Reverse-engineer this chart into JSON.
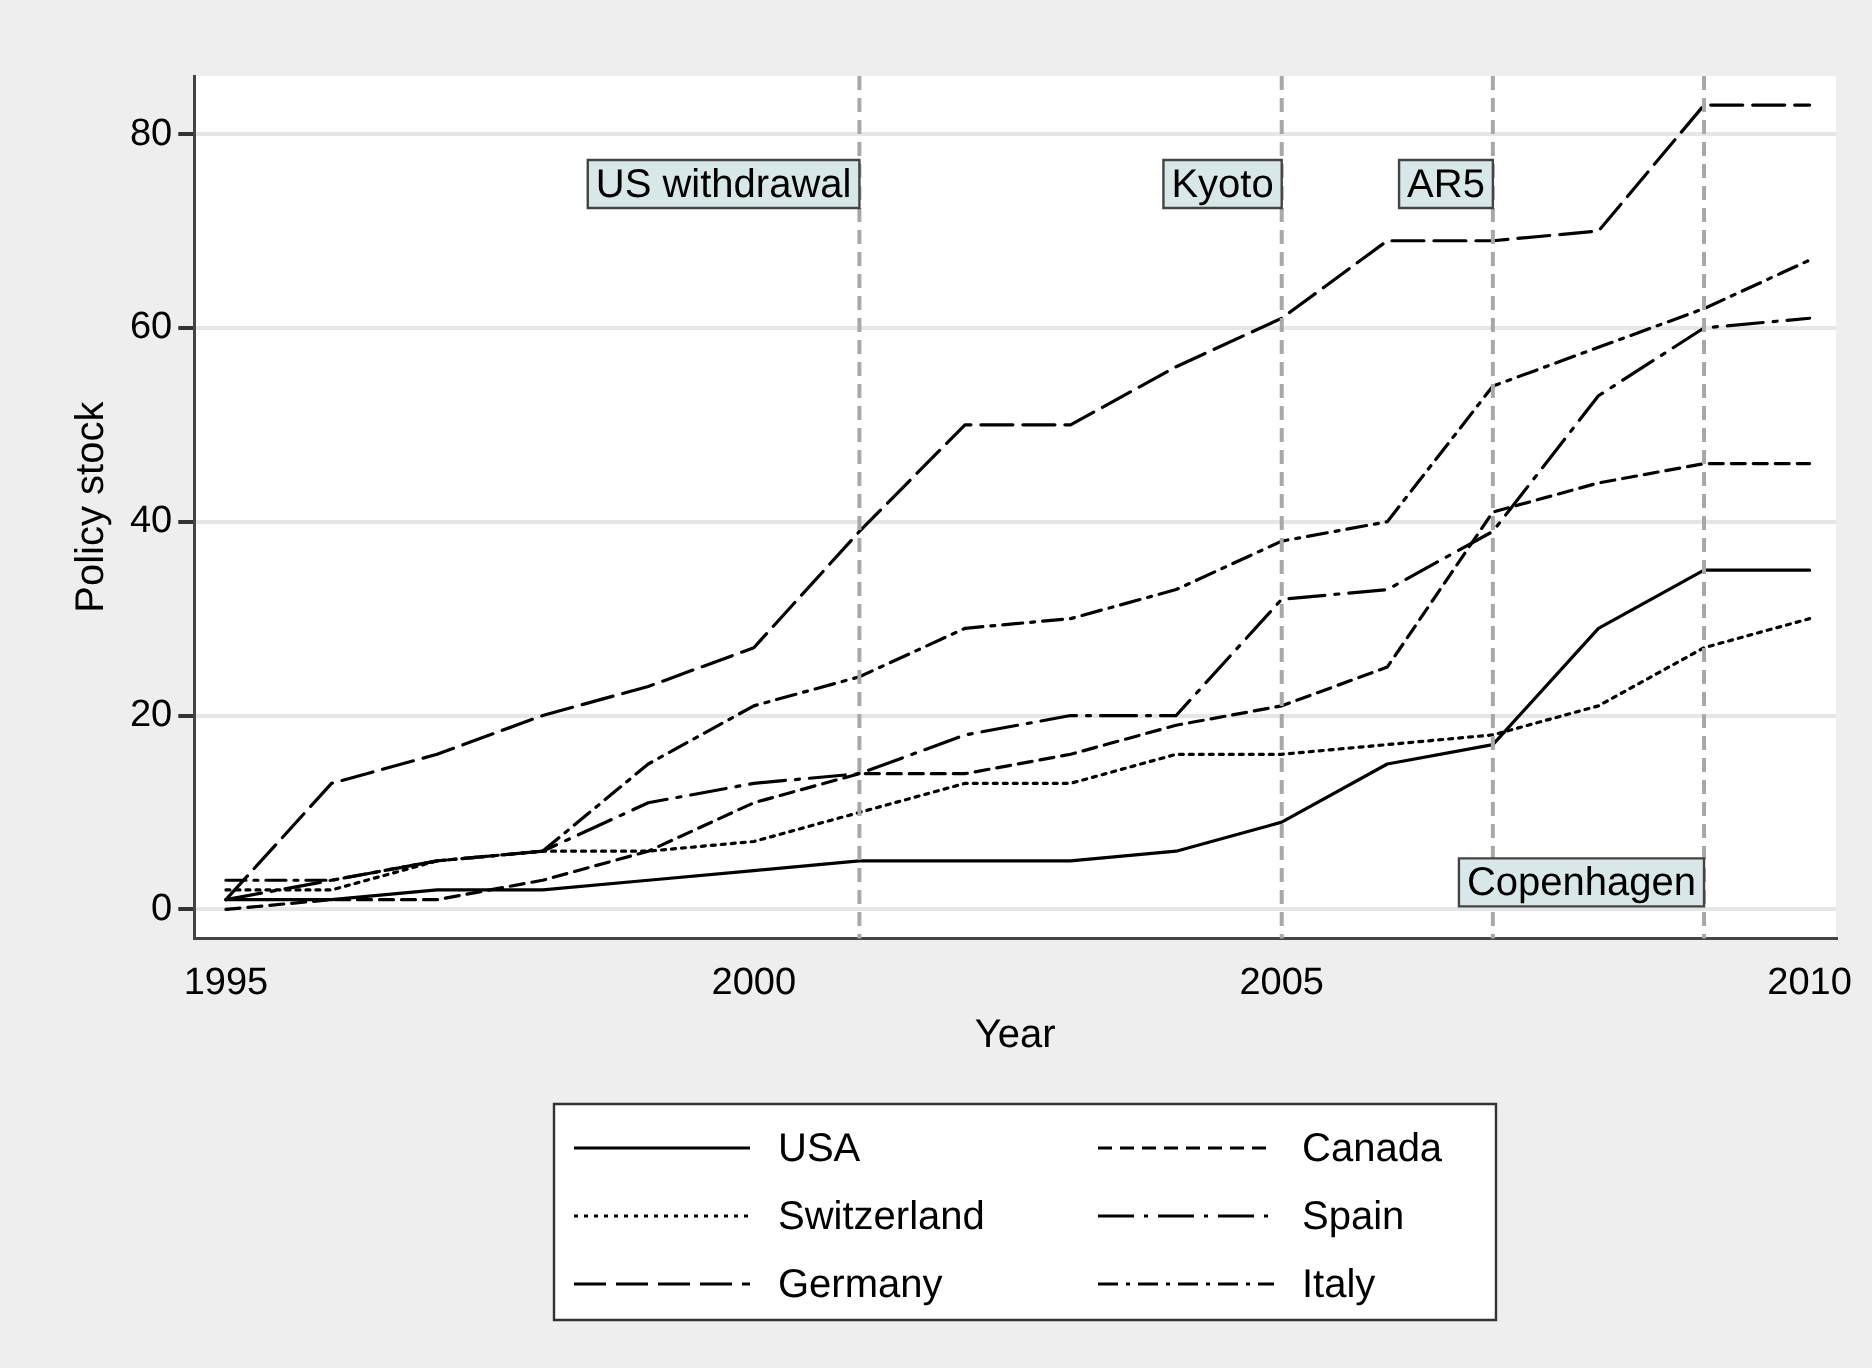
{
  "chart_data": {
    "type": "line",
    "xlabel": "Year",
    "ylabel": "Policy stock",
    "x": [
      1995,
      1996,
      1997,
      1998,
      1999,
      2000,
      2001,
      2002,
      2003,
      2004,
      2005,
      2006,
      2007,
      2008,
      2009,
      2010
    ],
    "xlim": [
      1994.7,
      2010.25
    ],
    "xticks": [
      1995,
      2000,
      2005,
      2010
    ],
    "ylim": [
      -3,
      86
    ],
    "yticks": [
      0,
      20,
      40,
      60,
      80
    ],
    "grid": "y",
    "legend": "bottom",
    "marker": "none",
    "series": [
      {
        "name": "USA",
        "color": "#000000",
        "line_style": "solid",
        "values": [
          1,
          1,
          2,
          2,
          3,
          4,
          5,
          5,
          5,
          6,
          9,
          15,
          17,
          29,
          35,
          35
        ]
      },
      {
        "name": "Canada",
        "color": "#000000",
        "line_style": "dashed",
        "values": [
          0,
          1,
          1,
          3,
          6,
          11,
          14,
          14,
          16,
          19,
          21,
          25,
          41,
          44,
          46,
          46
        ]
      },
      {
        "name": "Switzerland",
        "color": "#000000",
        "line_style": "dotted",
        "values": [
          2,
          2,
          5,
          6,
          6,
          7,
          10,
          13,
          13,
          16,
          16,
          17,
          18,
          21,
          27,
          30
        ]
      },
      {
        "name": "Spain",
        "color": "#000000",
        "line_style": "longdashdot",
        "values": [
          1,
          3,
          5,
          6,
          11,
          13,
          14,
          18,
          20,
          20,
          32,
          33,
          39,
          53,
          60,
          61
        ]
      },
      {
        "name": "Germany",
        "color": "#000000",
        "line_style": "longdash",
        "values": [
          1,
          13,
          16,
          20,
          23,
          27,
          39,
          50,
          50,
          56,
          61,
          69,
          69,
          70,
          83,
          83
        ]
      },
      {
        "name": "Italy",
        "color": "#000000",
        "line_style": "dashdot",
        "values": [
          3,
          3,
          5,
          6,
          15,
          21,
          24,
          29,
          30,
          33,
          38,
          40,
          54,
          58,
          62,
          67
        ]
      }
    ],
    "ref_lines": [
      {
        "axis": "x",
        "value": 2001,
        "label": "US withdrawal",
        "color": "#a8a8a8",
        "line_style": "dashed"
      },
      {
        "axis": "x",
        "value": 2005,
        "label": "Kyoto",
        "color": "#a8a8a8",
        "line_style": "dashed"
      },
      {
        "axis": "x",
        "value": 2007,
        "label": "AR5",
        "color": "#a8a8a8",
        "line_style": "dashed"
      },
      {
        "axis": "x",
        "value": 2009,
        "label": "Copenhagen",
        "color": "#a8a8a8",
        "line_style": "dashed"
      }
    ]
  }
}
